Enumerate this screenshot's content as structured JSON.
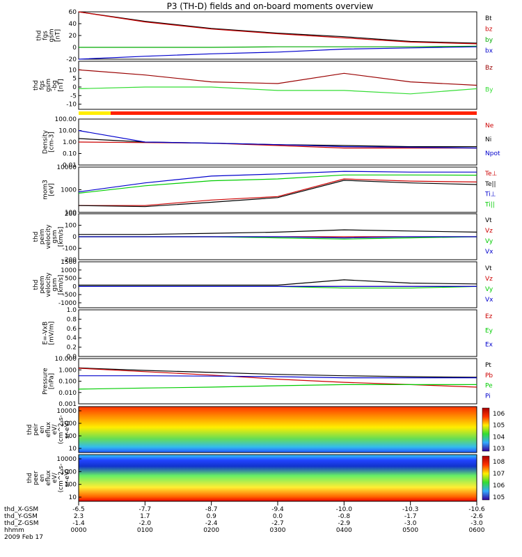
{
  "title": "P3 (TH-D) fields and on-board moments overview",
  "panels": [
    {
      "id": "fgs_gsm",
      "ylabel": [
        "thd",
        "fgs",
        "gsm",
        "[nT]"
      ],
      "ylim": [
        -20,
        60
      ],
      "ticks": [
        "60",
        "40",
        "20",
        "0",
        "-20"
      ],
      "tick_vals": [
        60,
        40,
        20,
        0,
        -20
      ],
      "legend": [
        {
          "name": "Bt",
          "color": "#000000"
        },
        {
          "name": "bz",
          "color": "#cc0000"
        },
        {
          "name": "by",
          "color": "#00aa00"
        },
        {
          "name": "bx",
          "color": "#0000cc"
        }
      ]
    },
    {
      "id": "fgs_gsm_detrend",
      "ylabel": [
        "thd",
        "fgs",
        "gsm",
        "-bg",
        "[nT]"
      ],
      "ylim": [
        -13,
        15
      ],
      "ticks": [
        "10",
        "5",
        "0",
        "-5",
        "-10"
      ],
      "tick_vals": [
        10,
        5,
        0,
        -5,
        -10
      ],
      "legend": [
        {
          "name": "Bz",
          "color": "#990000"
        },
        {
          "name": "By",
          "color": "#33dd33"
        }
      ]
    },
    {
      "id": "density",
      "ylabel": [
        "Density",
        "[cm-3]"
      ],
      "log": true,
      "ylim": [
        0.01,
        100
      ],
      "ticks": [
        "100.00",
        "10.00",
        "1.00",
        "0.10",
        "0.01"
      ],
      "tick_vals": [
        100,
        10,
        1,
        0.1,
        0.01
      ],
      "legend": [
        {
          "name": "Ne",
          "color": "#cc0000"
        },
        {
          "name": "Ni",
          "color": "#000000"
        },
        {
          "name": "Npot",
          "color": "#0000cc"
        }
      ]
    },
    {
      "id": "temperature",
      "ylabel": [
        "mom3",
        "[eV]"
      ],
      "log": true,
      "ylim": [
        100,
        10000
      ],
      "ticks": [
        "10000",
        "1000",
        "100"
      ],
      "tick_vals": [
        10000,
        1000,
        100
      ],
      "legend": [
        {
          "name": "Te⊥",
          "color": "#cc0000"
        },
        {
          "name": "Te||",
          "color": "#000000"
        },
        {
          "name": "Ti⊥",
          "color": "#0000cc"
        },
        {
          "name": "Ti||",
          "color": "#00cc00"
        }
      ]
    },
    {
      "id": "peim_velocity",
      "ylabel": [
        "thd",
        "peim",
        "velocity",
        "gsm",
        "[km/s]"
      ],
      "ylim": [
        -200,
        200
      ],
      "ticks": [
        "200",
        "100",
        "0",
        "-100",
        "-200"
      ],
      "tick_vals": [
        200,
        100,
        0,
        -100,
        -200
      ],
      "legend": [
        {
          "name": "Vt",
          "color": "#000000"
        },
        {
          "name": "Vz",
          "color": "#cc0000"
        },
        {
          "name": "Vy",
          "color": "#00cc00"
        },
        {
          "name": "Vx",
          "color": "#0000cc"
        }
      ]
    },
    {
      "id": "peem_velocity",
      "ylabel": [
        "thd",
        "peem",
        "velocity",
        "gsm",
        "[km/s]"
      ],
      "ylim": [
        -1300,
        1500
      ],
      "ticks": [
        "1500",
        "1000",
        "500",
        "0",
        "-500",
        "-1000"
      ],
      "tick_vals": [
        1500,
        1000,
        500,
        0,
        -500,
        -1000
      ],
      "legend": [
        {
          "name": "Vt",
          "color": "#000000"
        },
        {
          "name": "Vz",
          "color": "#cc0000"
        },
        {
          "name": "Vy",
          "color": "#00cc00"
        },
        {
          "name": "Vx",
          "color": "#0000cc"
        }
      ]
    },
    {
      "id": "efield",
      "ylabel": [
        "E=-VxB",
        "[mV/m]"
      ],
      "ylim": [
        0,
        1
      ],
      "ticks": [
        "1.0",
        "0.8",
        "0.6",
        "0.4",
        "0.2",
        "0.0"
      ],
      "tick_vals": [
        1,
        0.8,
        0.6,
        0.4,
        0.2,
        0
      ],
      "legend": [
        {
          "name": "Ez",
          "color": "#cc0000"
        },
        {
          "name": "Ey",
          "color": "#00cc00"
        },
        {
          "name": "Ex",
          "color": "#0000cc"
        }
      ]
    },
    {
      "id": "pressure",
      "ylabel": [
        "Pressure",
        "[nPa]"
      ],
      "log": true,
      "ylim": [
        0.001,
        10
      ],
      "ticks": [
        "10.000",
        "1.000",
        "0.100",
        "0.010",
        "0.001"
      ],
      "tick_vals": [
        10,
        1,
        0.1,
        0.01,
        0.001
      ],
      "legend": [
        {
          "name": "Pt",
          "color": "#000000"
        },
        {
          "name": "Pb",
          "color": "#cc0000"
        },
        {
          "name": "Pe",
          "color": "#00cc00"
        },
        {
          "name": "Pi",
          "color": "#0000cc"
        }
      ]
    },
    {
      "id": "peir_spec",
      "ylabel": [
        "thd",
        "peir",
        "en",
        "eflux",
        "eV/",
        "(cm^2-s-",
        "sr-eV)"
      ],
      "ticks": [
        "10000",
        "1000",
        "100",
        "10"
      ],
      "colorbar": [
        "10^6",
        "10^5",
        "10^4",
        "10^3"
      ]
    },
    {
      "id": "peer_spec",
      "ylabel": [
        "thd",
        "peer",
        "en",
        "eflux",
        "eV/",
        "(cm^2-s-",
        "sr-eV)"
      ],
      "ticks": [
        "10000",
        "1000",
        "100",
        "10"
      ],
      "colorbar": [
        "10^8",
        "10^7",
        "10^6",
        "10^5"
      ]
    }
  ],
  "x_axis": {
    "rows": [
      {
        "label": "thd_X-GSM",
        "values": [
          "-6.5",
          "-7.7",
          "-8.7",
          "-9.4",
          "-10.0",
          "-10.3",
          "-10.6"
        ]
      },
      {
        "label": "thd_Y-GSM",
        "values": [
          "2.3",
          "1.7",
          "0.9",
          "0.0",
          "-0.8",
          "-1.7",
          "-2.6"
        ]
      },
      {
        "label": "thd_Z-GSM",
        "values": [
          "-1.4",
          "-2.0",
          "-2.4",
          "-2.7",
          "-2.9",
          "-3.0",
          "-3.0"
        ]
      },
      {
        "label": "hhmm",
        "values": [
          "0000",
          "0100",
          "0200",
          "0300",
          "0400",
          "0500",
          "0600"
        ]
      }
    ],
    "date": "2009 Feb 17"
  },
  "chart_data": {
    "type": "line",
    "title": "P3 (TH-D) fields and on-board moments overview",
    "x": [
      "0000",
      "0100",
      "0200",
      "0300",
      "0400",
      "0500",
      "0600"
    ],
    "xlabel": "hhmm",
    "series_by_panel": {
      "fgs_gsm": [
        {
          "name": "Bt",
          "values": [
            62,
            44,
            32,
            24,
            18,
            10,
            7
          ]
        },
        {
          "name": "bz",
          "values": [
            60,
            43,
            31,
            23,
            16,
            9,
            6
          ]
        },
        {
          "name": "by",
          "values": [
            0,
            0,
            0,
            1,
            1,
            1,
            2
          ]
        },
        {
          "name": "bx",
          "values": [
            -20,
            -15,
            -11,
            -8,
            -3,
            -1,
            1
          ]
        }
      ],
      "fgs_gsm_detrend": [
        {
          "name": "Bz",
          "values": [
            10,
            7,
            3,
            2,
            8,
            3,
            1
          ]
        },
        {
          "name": "By",
          "values": [
            -1,
            0,
            0,
            -2,
            -2,
            -4,
            -1
          ]
        }
      ],
      "density": [
        {
          "name": "Ne",
          "values": [
            1.0,
            0.9,
            0.8,
            0.5,
            0.3,
            0.3,
            0.3
          ]
        },
        {
          "name": "Ni",
          "values": [
            2.0,
            1.0,
            0.8,
            0.6,
            0.5,
            0.4,
            0.4
          ]
        },
        {
          "name": "Npot",
          "values": [
            10,
            1.0,
            0.8,
            0.6,
            0.4,
            0.35,
            0.3
          ]
        }
      ],
      "temperature": [
        {
          "name": "Te⊥",
          "values": [
            200,
            200,
            350,
            500,
            3000,
            2400,
            2200
          ]
        },
        {
          "name": "Te||",
          "values": [
            200,
            180,
            280,
            450,
            2600,
            2000,
            1700
          ]
        },
        {
          "name": "Ti⊥",
          "values": [
            800,
            2000,
            4000,
            5000,
            6500,
            6000,
            6000
          ]
        },
        {
          "name": "Ti||",
          "values": [
            700,
            1500,
            2500,
            3000,
            4500,
            4500,
            4400
          ]
        }
      ],
      "peim_velocity": [
        {
          "name": "Vt",
          "values": [
            20,
            20,
            30,
            40,
            60,
            50,
            40
          ]
        },
        {
          "name": "Vz",
          "values": [
            0,
            0,
            0,
            0,
            0,
            0,
            0
          ]
        },
        {
          "name": "Vy",
          "values": [
            0,
            0,
            0,
            -10,
            -20,
            -10,
            0
          ]
        },
        {
          "name": "Vx",
          "values": [
            0,
            0,
            0,
            0,
            -10,
            0,
            0
          ]
        }
      ],
      "peem_velocity": [
        {
          "name": "Vt",
          "values": [
            80,
            80,
            80,
            80,
            400,
            200,
            150
          ]
        },
        {
          "name": "Vz",
          "values": [
            0,
            0,
            0,
            0,
            0,
            0,
            0
          ]
        },
        {
          "name": "Vy",
          "values": [
            0,
            0,
            0,
            0,
            -100,
            -100,
            0
          ]
        },
        {
          "name": "Vx",
          "values": [
            0,
            0,
            0,
            0,
            0,
            0,
            0
          ]
        }
      ],
      "pressure": [
        {
          "name": "Pt",
          "values": [
            1.5,
            0.9,
            0.6,
            0.4,
            0.3,
            0.25,
            0.22
          ]
        },
        {
          "name": "Pb",
          "values": [
            1.4,
            0.7,
            0.35,
            0.15,
            0.08,
            0.05,
            0.03
          ]
        },
        {
          "name": "Pe",
          "values": [
            0.02,
            0.025,
            0.03,
            0.04,
            0.05,
            0.05,
            0.05
          ]
        },
        {
          "name": "Pi",
          "values": [
            0.3,
            0.3,
            0.28,
            0.25,
            0.2,
            0.2,
            0.2
          ]
        }
      ]
    }
  }
}
